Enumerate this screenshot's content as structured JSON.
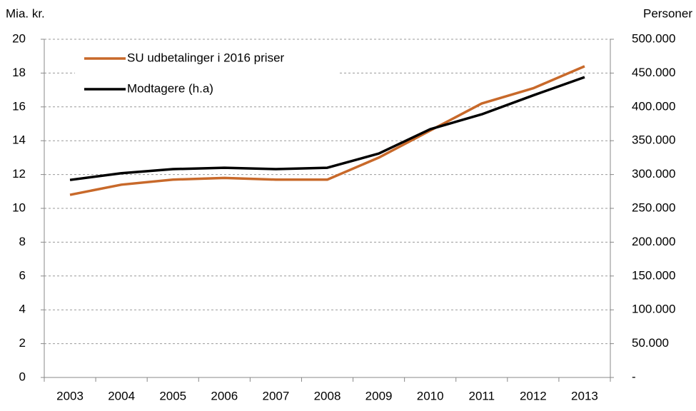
{
  "chart_data": {
    "type": "line",
    "y_label": "Mia. kr.",
    "y2_label": "Personer",
    "categories": [
      "2003",
      "2004",
      "2005",
      "2006",
      "2007",
      "2008",
      "2009",
      "2010",
      "2011",
      "2012",
      "2013"
    ],
    "series": [
      {
        "name": "SU udbetalinger i 2016 priser",
        "color": "#c8692a",
        "values": [
          10.8,
          11.4,
          11.7,
          11.8,
          11.7,
          11.7,
          13.0,
          14.6,
          16.2,
          17.1,
          18.4
        ]
      },
      {
        "name": "Modtagere (h.a)",
        "color": "#000000",
        "axis": "y2",
        "values": [
          292000,
          302000,
          308000,
          310000,
          308000,
          310000,
          331000,
          367000,
          389000,
          417000,
          444000
        ]
      }
    ],
    "ylim": [
      0,
      20
    ],
    "yticks": [
      0,
      2,
      4,
      6,
      8,
      10,
      12,
      14,
      16,
      18,
      20
    ],
    "y2lim": [
      0,
      500000
    ],
    "y2ticks": [
      {
        "value": 0,
        "label": "-"
      },
      {
        "value": 50000,
        "label": "50.000"
      },
      {
        "value": 100000,
        "label": "100.000"
      },
      {
        "value": 150000,
        "label": "150.000"
      },
      {
        "value": 200000,
        "label": "200.000"
      },
      {
        "value": 250000,
        "label": "250.000"
      },
      {
        "value": 300000,
        "label": "300.000"
      },
      {
        "value": 350000,
        "label": "350.000"
      },
      {
        "value": 400000,
        "label": "400.000"
      },
      {
        "value": 450000,
        "label": "450.000"
      },
      {
        "value": 500000,
        "label": "500.000"
      }
    ],
    "grid": true,
    "legend": "upper left"
  }
}
